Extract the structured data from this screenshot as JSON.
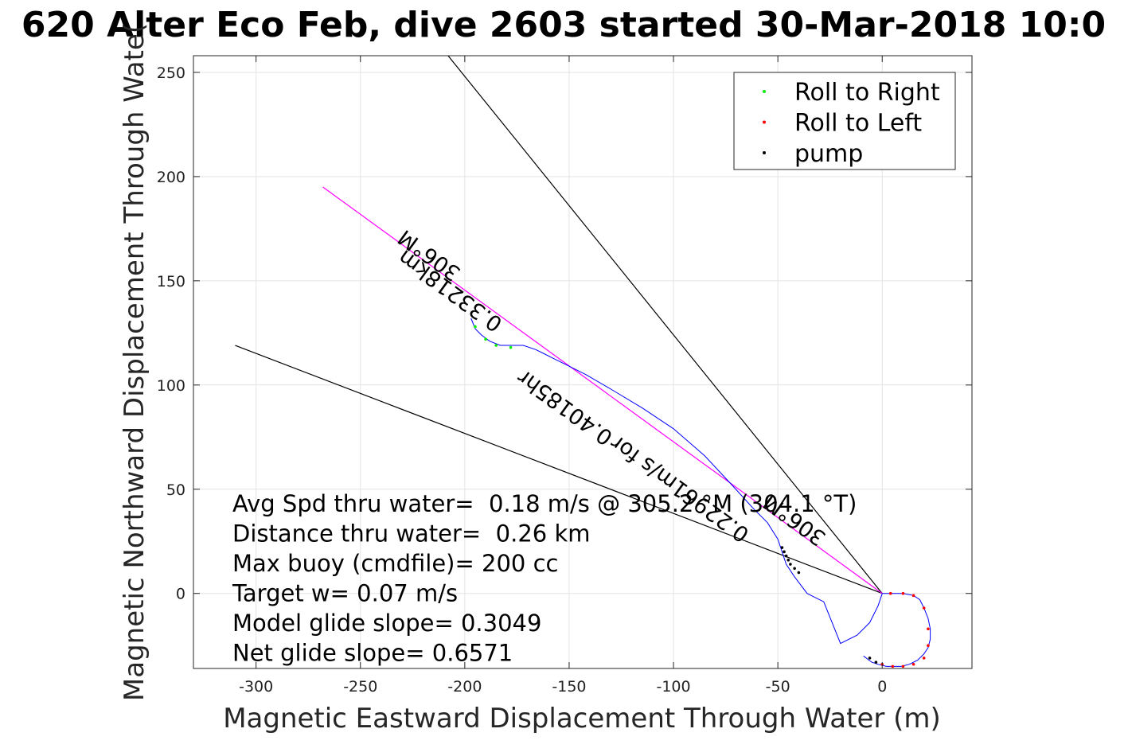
{
  "chart_data": {
    "type": "line",
    "title": "620 Alter Eco Feb, dive 2603 started 30-Mar-2018 10:0",
    "xlabel": "Magnetic Eastward Displacement Through Water (m)",
    "ylabel": "Magnetic Northward Displacement Through Wate(",
    "xlim": [
      -330,
      43
    ],
    "ylim": [
      -36,
      258
    ],
    "xticks": [
      -300,
      -250,
      -200,
      -150,
      -100,
      -50,
      0
    ],
    "xtick_labels": [
      "-300",
      "-250",
      "-200",
      "-150",
      "-100",
      "-50",
      "0"
    ],
    "yticks": [
      0,
      50,
      100,
      150,
      200,
      250
    ],
    "ytick_labels": [
      "0",
      "50",
      "100",
      "150",
      "200",
      "250"
    ],
    "grid": true,
    "legend_position": "top-right",
    "legend": [
      {
        "label": "Roll to Right",
        "color": "#00ee00"
      },
      {
        "label": "Roll to Left",
        "color": "#ff0000"
      },
      {
        "label": "pump",
        "color": "#000000"
      }
    ],
    "colors": {
      "track": "#0000ff",
      "heading_line": "#ff00ff",
      "cone": "#000000"
    },
    "series": [
      {
        "role": "track",
        "x": [
          0,
          -2,
          -6,
          -12,
          -20,
          -28,
          -36,
          -42,
          -46,
          -48,
          -50,
          -55,
          -62,
          -72,
          -85,
          -100,
          -115,
          -130,
          -142,
          -152,
          -158,
          -162,
          -166,
          -172,
          -178,
          -183,
          -188,
          -192,
          -195,
          -197
        ],
        "y": [
          0,
          -6,
          -14,
          -20,
          -24,
          -4,
          0,
          8,
          14,
          20,
          26,
          34,
          41,
          52,
          66,
          79,
          89,
          98,
          105,
          110,
          113,
          115,
          117,
          119,
          119,
          119,
          121,
          124,
          127,
          132
        ]
      },
      {
        "role": "surface_loop",
        "x": [
          0,
          4,
          10,
          15,
          18,
          20,
          22,
          23,
          23,
          22,
          20,
          17,
          13,
          9,
          5,
          2,
          -2,
          -5,
          -9
        ],
        "y": [
          0,
          0,
          0,
          -1,
          -3,
          -7,
          -12,
          -17,
          -22,
          -26,
          -29,
          -32,
          -34,
          -35,
          -35,
          -35,
          -34,
          -33,
          -30
        ]
      }
    ],
    "heading_line": {
      "from": [
        0,
        0
      ],
      "to": [
        -268,
        195
      ]
    },
    "cone_lines": [
      {
        "from": [
          0,
          0
        ],
        "to": [
          -208,
          258
        ]
      },
      {
        "from": [
          0,
          0
        ],
        "to": [
          -310,
          119
        ]
      }
    ],
    "markers": {
      "roll_right": {
        "x": [
          -185,
          -190,
          -195,
          -178
        ],
        "y": [
          119,
          122,
          128,
          118
        ]
      },
      "roll_left": {
        "x": [
          4,
          10,
          15,
          20,
          22,
          22,
          20,
          15,
          10,
          5,
          0
        ],
        "y": [
          0,
          0,
          -1,
          -7,
          -17,
          -25,
          -31,
          -34,
          -35,
          -35,
          -34
        ]
      },
      "pump": {
        "x": [
          -40,
          -42,
          -44,
          -45,
          -46,
          -47,
          -48,
          -6,
          -3
        ],
        "y": [
          10,
          12,
          14,
          16,
          18,
          20,
          22,
          -31,
          -33
        ]
      }
    },
    "annotations": [
      {
        "text": "306°M",
        "x": -215,
        "y": 165,
        "angle": 216
      },
      {
        "text": "0.33218km",
        "x": -205,
        "y": 148,
        "angle": 216
      },
      {
        "text": "0.40185hr",
        "x": -150,
        "y": 92,
        "angle": 216
      },
      {
        "text": "0.22961m/s for",
        "x": -95,
        "y": 53,
        "angle": 216
      },
      {
        "text": "306°M",
        "x": -40,
        "y": 38,
        "angle": 216
      }
    ],
    "stats": [
      "Avg Spd thru water=  0.18 m/s @ 305.2 °M (304.1 °T)",
      "Distance thru water=  0.26 km",
      "Max buoy (cmdfile)= 200 cc",
      "Target w= 0.07 m/s",
      "Model glide slope= 0.3049",
      "Net glide slope= 0.6571"
    ]
  }
}
